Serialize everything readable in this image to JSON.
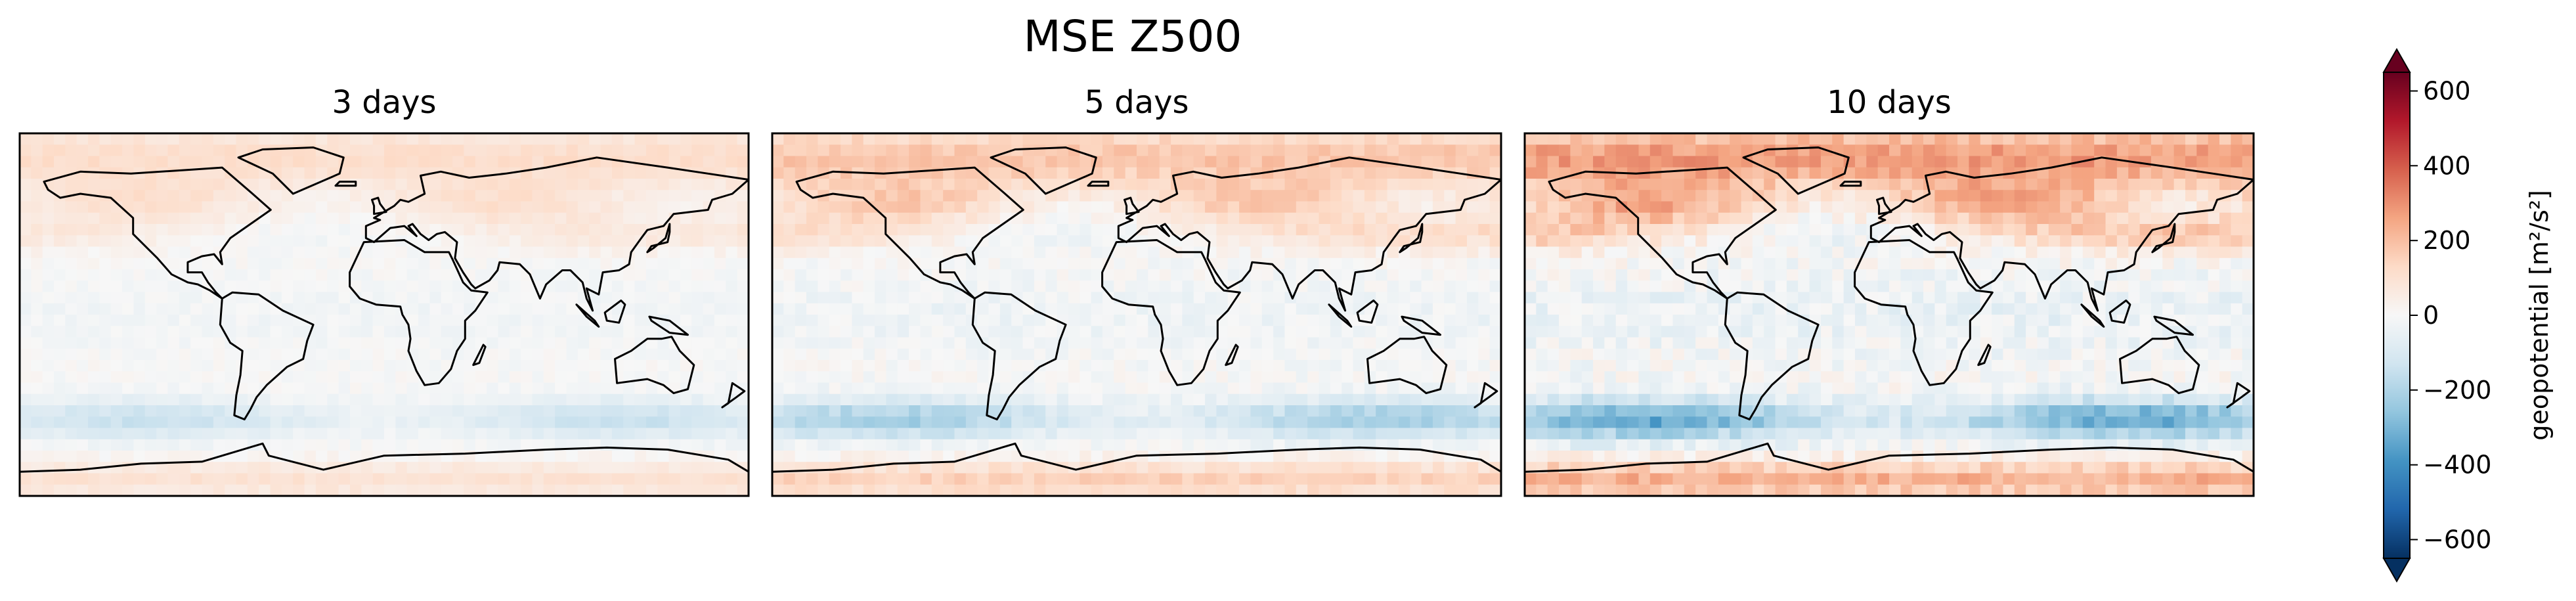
{
  "chart_data": {
    "type": "heatmap",
    "title": "MSE Z500",
    "panels": [
      {
        "title": "3 days",
        "amp": 0.6,
        "seed": 11
      },
      {
        "title": "5 days",
        "amp": 0.95,
        "seed": 23
      },
      {
        "title": "10 days",
        "amp": 1.45,
        "seed": 37
      }
    ],
    "colorbar": {
      "label": "geopotential [m²/s²]",
      "range": [
        -650,
        650
      ],
      "ticks": [
        600,
        400,
        200,
        0,
        -200,
        -400,
        -600
      ],
      "tick_labels": [
        "600",
        "400",
        "200",
        "0",
        "−200",
        "−400",
        "−600"
      ],
      "colormap": "RdBu_r",
      "extend": "both"
    },
    "colors": [
      "#053061",
      "#2166ac",
      "#4393c3",
      "#92c5de",
      "#d1e5f0",
      "#f7f7f7",
      "#fddbc7",
      "#f4a582",
      "#d6604d",
      "#b2182b",
      "#67001f"
    ]
  }
}
